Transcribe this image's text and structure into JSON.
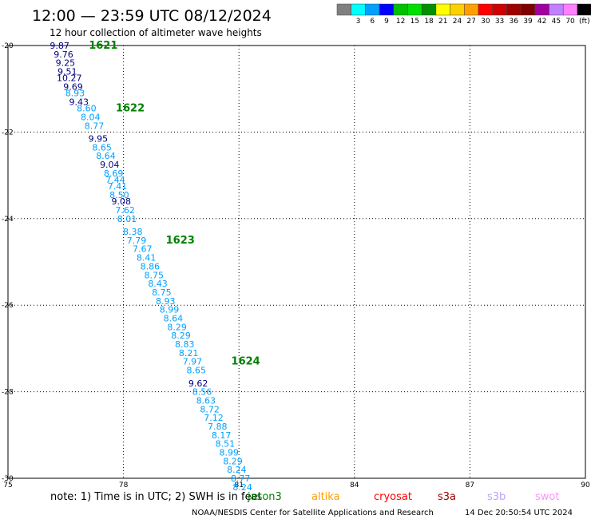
{
  "chart_data": {
    "type": "scatter",
    "title": "12:00 — 23:59 UTC 08/12/2024",
    "subtitle": "12 hour collection of altimeter wave heights",
    "xlim": [
      75,
      90
    ],
    "ylim": [
      -30,
      -20
    ],
    "x_ticks": [
      "75",
      "78",
      "81",
      "84",
      "87",
      "90"
    ],
    "x_tick_values": [
      75,
      78,
      81,
      84,
      87,
      90
    ],
    "y_ticks": [
      "-20",
      "-22",
      "-24",
      "-26",
      "-28",
      "-30"
    ],
    "y_tick_values": [
      -20,
      -22,
      -24,
      -26,
      -28,
      -30
    ],
    "grid": true,
    "color_legend": {
      "unit": "(ft)",
      "labels": [
        "3",
        "6",
        "9",
        "12",
        "15",
        "18",
        "21",
        "24",
        "27",
        "30",
        "33",
        "36",
        "39",
        "42",
        "45",
        "70"
      ],
      "colors": [
        "#808080",
        "#00ffff",
        "#00a0ff",
        "#0000ff",
        "#00c000",
        "#00e000",
        "#009000",
        "#ffff00",
        "#ffd000",
        "#ffa000",
        "#ff0000",
        "#d00000",
        "#a00000",
        "#800000",
        "#a000a0",
        "#c080ff",
        "#ff80ff",
        "#000000"
      ]
    },
    "series": [
      {
        "label_color": "#000080",
        "points": [
          {
            "x": 76.3,
            "y": -20.0,
            "value": "9.87"
          },
          {
            "x": 76.4,
            "y": -20.2,
            "value": "9.76"
          },
          {
            "x": 76.45,
            "y": -20.4,
            "value": "9.25"
          },
          {
            "x": 76.5,
            "y": -20.6,
            "value": "9.51"
          },
          {
            "x": 76.55,
            "y": -20.75,
            "value": "10.27"
          },
          {
            "x": 76.65,
            "y": -20.95,
            "value": "9.69"
          },
          {
            "x": 76.8,
            "y": -21.3,
            "value": "9.43"
          },
          {
            "x": 77.3,
            "y": -22.15,
            "value": "9.95"
          },
          {
            "x": 77.6,
            "y": -22.75,
            "value": "9.04"
          },
          {
            "x": 77.9,
            "y": -23.6,
            "value": "9.08"
          },
          {
            "x": 79.9,
            "y": -27.8,
            "value": "9.62"
          }
        ]
      },
      {
        "label_color": "#00a0ff",
        "points": [
          {
            "x": 76.7,
            "y": -21.1,
            "value": "8.93"
          },
          {
            "x": 77.0,
            "y": -21.45,
            "value": "8.60"
          },
          {
            "x": 77.1,
            "y": -21.65,
            "value": "8.04"
          },
          {
            "x": 77.2,
            "y": -21.85,
            "value": "8.77"
          },
          {
            "x": 77.4,
            "y": -22.35,
            "value": "8.65"
          },
          {
            "x": 77.5,
            "y": -22.55,
            "value": "8.64"
          },
          {
            "x": 77.7,
            "y": -22.95,
            "value": "8.69"
          },
          {
            "x": 77.75,
            "y": -23.1,
            "value": "7.44"
          },
          {
            "x": 77.8,
            "y": -23.25,
            "value": "7.41"
          },
          {
            "x": 77.85,
            "y": -23.45,
            "value": "8.50"
          },
          {
            "x": 78.0,
            "y": -23.8,
            "value": "7.62"
          },
          {
            "x": 78.05,
            "y": -24.0,
            "value": "8.01"
          },
          {
            "x": 78.2,
            "y": -24.3,
            "value": "8.38"
          },
          {
            "x": 78.3,
            "y": -24.5,
            "value": "7.79"
          },
          {
            "x": 78.45,
            "y": -24.7,
            "value": "7.67"
          },
          {
            "x": 78.55,
            "y": -24.9,
            "value": "8.41"
          },
          {
            "x": 78.65,
            "y": -25.1,
            "value": "8.86"
          },
          {
            "x": 78.75,
            "y": -25.3,
            "value": "8.75"
          },
          {
            "x": 78.85,
            "y": -25.5,
            "value": "8.43"
          },
          {
            "x": 78.95,
            "y": -25.7,
            "value": "8.75"
          },
          {
            "x": 79.05,
            "y": -25.9,
            "value": "8.93"
          },
          {
            "x": 79.15,
            "y": -26.1,
            "value": "8.99"
          },
          {
            "x": 79.25,
            "y": -26.3,
            "value": "8.64"
          },
          {
            "x": 79.35,
            "y": -26.5,
            "value": "8.29"
          },
          {
            "x": 79.45,
            "y": -26.7,
            "value": "8.29"
          },
          {
            "x": 79.55,
            "y": -26.9,
            "value": "8.83"
          },
          {
            "x": 79.65,
            "y": -27.1,
            "value": "8.21"
          },
          {
            "x": 79.75,
            "y": -27.3,
            "value": "7.97"
          },
          {
            "x": 79.85,
            "y": -27.5,
            "value": "8.65"
          },
          {
            "x": 80.0,
            "y": -28.0,
            "value": "8.56"
          },
          {
            "x": 80.1,
            "y": -28.2,
            "value": "8.63"
          },
          {
            "x": 80.2,
            "y": -28.4,
            "value": "8.72"
          },
          {
            "x": 80.3,
            "y": -28.6,
            "value": "7.12"
          },
          {
            "x": 80.4,
            "y": -28.8,
            "value": "7.88"
          },
          {
            "x": 80.5,
            "y": -29.0,
            "value": "8.17"
          },
          {
            "x": 80.6,
            "y": -29.2,
            "value": "8.51"
          },
          {
            "x": 80.7,
            "y": -29.4,
            "value": "8.99"
          },
          {
            "x": 80.8,
            "y": -29.6,
            "value": "8.29"
          },
          {
            "x": 80.9,
            "y": -29.8,
            "value": "8.24"
          },
          {
            "x": 81.0,
            "y": -30.0,
            "value": "8.77"
          },
          {
            "x": 81.05,
            "y": -30.2,
            "value": "8.24"
          }
        ]
      }
    ],
    "annotations": [
      {
        "text": "1621",
        "x": 77.1,
        "y": -20.0,
        "color": "#008000"
      },
      {
        "text": "1622",
        "x": 77.8,
        "y": -21.45,
        "color": "#008000"
      },
      {
        "text": "1623",
        "x": 79.1,
        "y": -24.5,
        "color": "#008000"
      },
      {
        "text": "1624",
        "x": 80.8,
        "y": -27.3,
        "color": "#008000"
      }
    ]
  },
  "footer": {
    "note": "note:  1) Time is in UTC; 2) SWH is in feet",
    "satellites": [
      {
        "name": "jason3",
        "color": "#008000"
      },
      {
        "name": "altika",
        "color": "#ffa000"
      },
      {
        "name": "cryosat",
        "color": "#ff0000"
      },
      {
        "name": "s3a",
        "color": "#a00000"
      },
      {
        "name": "s3b",
        "color": "#c0a0ff"
      },
      {
        "name": "swot",
        "color": "#ff90ff"
      }
    ],
    "credit": "NOAA/NESDIS Center for Satellite Applications and Research",
    "timestamp": "14 Dec 20:50:54 UTC 2024"
  }
}
